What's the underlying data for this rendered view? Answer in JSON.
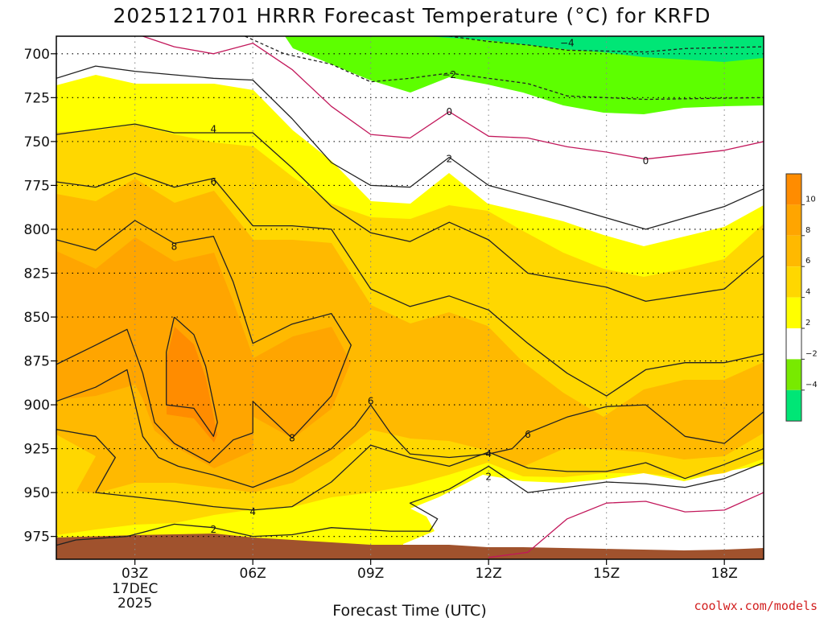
{
  "chart_data": {
    "type": "contour",
    "title": "2025121701 HRRR Forecast Temperature (°C) for KRFD",
    "xlabel": "Forecast Time (UTC)",
    "ylabel": "",
    "ylim": [
      988,
      690
    ],
    "xlim": [
      1,
      19
    ],
    "y_ticks": [
      "700",
      "725",
      "750",
      "775",
      "800",
      "825",
      "850",
      "875",
      "900",
      "925",
      "950",
      "975"
    ],
    "x_ticks": [
      {
        "hour": 3,
        "label": "03Z",
        "sub1": "17DEC",
        "sub2": "2025"
      },
      {
        "hour": 6,
        "label": "06Z",
        "sub1": "",
        "sub2": ""
      },
      {
        "hour": 9,
        "label": "09Z",
        "sub1": "",
        "sub2": ""
      },
      {
        "hour": 12,
        "label": "12Z",
        "sub1": "",
        "sub2": ""
      },
      {
        "hour": 15,
        "label": "15Z",
        "sub1": "",
        "sub2": ""
      },
      {
        "hour": 18,
        "label": "18Z",
        "sub1": "",
        "sub2": ""
      }
    ],
    "grid": true,
    "colorbar": {
      "placement": "right",
      "labels": [
        "10",
        "8",
        "6",
        "4",
        "2",
        "−2",
        "−4"
      ],
      "colors": [
        "#ff8c00",
        "#ffa500",
        "#ffb900",
        "#ffd700",
        "#ffff00",
        "#ffffff",
        "#78ea00",
        "#00e676"
      ]
    },
    "contours": [
      {
        "level": -4,
        "color": "#222222",
        "dashed": true,
        "points": [
          [
            11.0,
            690
          ],
          [
            12.0,
            693
          ],
          [
            13.0,
            695
          ],
          [
            14.0,
            698
          ],
          [
            16.0,
            699
          ],
          [
            17.0,
            697
          ],
          [
            19.0,
            696
          ]
        ]
      },
      {
        "level": -2,
        "color": "#222222",
        "dashed": true,
        "points": [
          [
            5.8,
            690
          ],
          [
            6.8,
            700
          ],
          [
            8.0,
            706
          ],
          [
            9.0,
            716
          ],
          [
            10.0,
            714
          ],
          [
            11.0,
            711
          ],
          [
            12.0,
            714
          ],
          [
            13.0,
            717
          ],
          [
            14.0,
            724
          ],
          [
            16.0,
            726
          ],
          [
            19.0,
            725
          ]
        ]
      },
      {
        "level": 0,
        "color": "#c2185b",
        "dashed": false,
        "points": [
          [
            3.2,
            690
          ],
          [
            4.0,
            696
          ],
          [
            5.0,
            700
          ],
          [
            6.0,
            694
          ],
          [
            7.0,
            709
          ],
          [
            8.0,
            730
          ],
          [
            9.0,
            746
          ],
          [
            10.0,
            748
          ],
          [
            11.0,
            733
          ],
          [
            12.0,
            747
          ],
          [
            13.0,
            748
          ],
          [
            14.0,
            753
          ],
          [
            15.0,
            756
          ],
          [
            16.0,
            760
          ],
          [
            18.0,
            755
          ],
          [
            19.0,
            750
          ]
        ]
      },
      {
        "level": 2,
        "color": "#222222",
        "dashed": false,
        "points": [
          [
            1.0,
            714
          ],
          [
            2.0,
            707
          ],
          [
            3.0,
            710
          ],
          [
            4.0,
            712
          ],
          [
            5.0,
            714
          ],
          [
            6.0,
            715
          ],
          [
            7.0,
            737
          ],
          [
            8.0,
            762
          ],
          [
            9.0,
            775
          ],
          [
            10.0,
            776
          ],
          [
            11.0,
            759
          ],
          [
            12.0,
            775
          ],
          [
            14.0,
            787
          ],
          [
            16.0,
            800
          ],
          [
            18.0,
            787
          ],
          [
            19.0,
            777
          ]
        ]
      },
      {
        "level": 4,
        "color": "#222222",
        "dashed": false,
        "points": [
          [
            1.0,
            746
          ],
          [
            2.0,
            743
          ],
          [
            3.0,
            740
          ],
          [
            4.0,
            745
          ],
          [
            5.0,
            745
          ],
          [
            6.0,
            745
          ],
          [
            7.0,
            765
          ],
          [
            8.0,
            787
          ],
          [
            9.0,
            802
          ],
          [
            10.0,
            807
          ],
          [
            11.0,
            796
          ],
          [
            12.0,
            806
          ],
          [
            13.0,
            825
          ],
          [
            15.0,
            833
          ],
          [
            16.0,
            841
          ],
          [
            18.0,
            834
          ],
          [
            19.0,
            815
          ]
        ]
      },
      {
        "level": 6,
        "color": "#222222",
        "dashed": false,
        "points": [
          [
            1.0,
            773
          ],
          [
            2.0,
            776
          ],
          [
            3.0,
            768
          ],
          [
            4.0,
            776
          ],
          [
            5.0,
            771
          ],
          [
            6.0,
            798
          ],
          [
            7.0,
            798
          ],
          [
            8.0,
            800
          ],
          [
            9.0,
            834
          ],
          [
            10.0,
            844
          ],
          [
            11.0,
            838
          ],
          [
            12.0,
            846
          ],
          [
            13.0,
            865
          ],
          [
            14.0,
            882
          ],
          [
            15.0,
            895
          ],
          [
            16.0,
            880
          ],
          [
            17.0,
            876
          ],
          [
            18.0,
            876
          ],
          [
            19.0,
            871
          ]
        ]
      },
      {
        "level": 8,
        "color": "#222222",
        "dashed": false,
        "points": [
          [
            1.0,
            806
          ],
          [
            2.0,
            812
          ],
          [
            3.0,
            795
          ],
          [
            4.0,
            808
          ],
          [
            5.0,
            804
          ],
          [
            5.5,
            830
          ],
          [
            6.0,
            865
          ],
          [
            7.0,
            854
          ],
          [
            8.0,
            848
          ],
          [
            8.5,
            866
          ],
          [
            8.0,
            895
          ],
          [
            7.0,
            919
          ],
          [
            6.0,
            898
          ],
          [
            6.0,
            916
          ]
        ]
      },
      {
        "level": 10,
        "color": "#222222",
        "dashed": false,
        "points": [
          [
            4.0,
            850
          ],
          [
            4.5,
            860
          ],
          [
            4.8,
            878
          ],
          [
            5.1,
            910
          ],
          [
            5.0,
            918
          ],
          [
            4.5,
            902
          ],
          [
            3.8,
            900
          ],
          [
            3.8,
            870
          ],
          [
            4.0,
            850
          ]
        ]
      },
      {
        "level": 8,
        "color": "#222222",
        "dashed": false,
        "points": [
          [
            1.0,
            877
          ],
          [
            2.0,
            866
          ],
          [
            2.8,
            857
          ],
          [
            3.2,
            882
          ],
          [
            3.5,
            910
          ],
          [
            4.0,
            922
          ],
          [
            4.9,
            933
          ],
          [
            5.5,
            920
          ],
          [
            6.0,
            916
          ]
        ]
      },
      {
        "level": 6,
        "color": "#222222",
        "dashed": false,
        "points": [
          [
            1.0,
            898
          ],
          [
            2.0,
            890
          ],
          [
            2.8,
            880
          ],
          [
            3.2,
            918
          ],
          [
            3.6,
            930
          ],
          [
            4.1,
            935
          ],
          [
            5.0,
            940
          ],
          [
            6.0,
            947
          ],
          [
            7.0,
            938
          ],
          [
            8.0,
            925
          ],
          [
            8.6,
            912
          ],
          [
            9.0,
            900
          ],
          [
            9.5,
            916
          ],
          [
            10.0,
            928
          ],
          [
            11.0,
            930
          ],
          [
            12.0,
            928
          ],
          [
            12.6,
            925
          ],
          [
            13.0,
            916
          ],
          [
            14.0,
            907
          ],
          [
            15.0,
            901
          ],
          [
            16.0,
            900
          ],
          [
            17.0,
            918
          ],
          [
            18.0,
            922
          ],
          [
            19.0,
            904
          ]
        ]
      },
      {
        "level": 4,
        "color": "#222222",
        "dashed": false,
        "points": [
          [
            1.0,
            914
          ],
          [
            2.0,
            918
          ],
          [
            2.5,
            930
          ],
          [
            2.0,
            950
          ],
          [
            4.0,
            955
          ],
          [
            5.0,
            958
          ],
          [
            6.0,
            960
          ],
          [
            7.0,
            958
          ],
          [
            8.0,
            944
          ],
          [
            9.0,
            923
          ],
          [
            10.0,
            930
          ],
          [
            11.0,
            935
          ],
          [
            12.0,
            927
          ],
          [
            13.0,
            936
          ],
          [
            14.0,
            938
          ],
          [
            15.0,
            938
          ],
          [
            16.0,
            933
          ],
          [
            17.0,
            942
          ],
          [
            18.0,
            934
          ],
          [
            19.0,
            925
          ]
        ]
      },
      {
        "level": 2,
        "color": "#222222",
        "dashed": false,
        "points": [
          [
            1.0,
            980
          ],
          [
            1.5,
            977
          ],
          [
            2.8,
            975
          ],
          [
            4.0,
            968
          ],
          [
            5.0,
            970
          ],
          [
            6.0,
            975
          ],
          [
            7.0,
            974
          ],
          [
            8.0,
            970
          ],
          [
            9.5,
            972
          ],
          [
            10.5,
            972
          ],
          [
            10.7,
            965
          ],
          [
            10.0,
            956
          ],
          [
            11.0,
            948
          ],
          [
            12.0,
            935
          ],
          [
            13.0,
            950
          ],
          [
            14.0,
            947
          ],
          [
            15.0,
            944
          ],
          [
            16.0,
            945
          ],
          [
            17.0,
            947
          ],
          [
            18.0,
            942
          ],
          [
            19.0,
            933
          ]
        ]
      },
      {
        "level": 0,
        "color": "#c2185b",
        "dashed": false,
        "points": [
          [
            12.0,
            987
          ],
          [
            13.0,
            984
          ],
          [
            14.0,
            965
          ],
          [
            15.0,
            956
          ],
          [
            16.0,
            955
          ],
          [
            17.0,
            961
          ],
          [
            18.0,
            960
          ],
          [
            19.0,
            950
          ]
        ]
      }
    ],
    "contour_labels": [
      {
        "x": 5.0,
        "y": 743,
        "text": "4"
      },
      {
        "x": 5.0,
        "y": 773,
        "text": "6"
      },
      {
        "x": 4.0,
        "y": 810,
        "text": "8"
      },
      {
        "x": 7.0,
        "y": 919,
        "text": "8"
      },
      {
        "x": 9.0,
        "y": 898,
        "text": "6"
      },
      {
        "x": 13.0,
        "y": 917,
        "text": "6"
      },
      {
        "x": 12.0,
        "y": 928,
        "text": "4"
      },
      {
        "x": 6.0,
        "y": 961,
        "text": "4"
      },
      {
        "x": 5.0,
        "y": 971,
        "text": "2"
      },
      {
        "x": 12.0,
        "y": 941,
        "text": "2"
      },
      {
        "x": 11.0,
        "y": 760,
        "text": "2"
      },
      {
        "x": 11.0,
        "y": 733,
        "text": "0"
      },
      {
        "x": 16.0,
        "y": 761,
        "text": "0"
      },
      {
        "x": 11.0,
        "y": 712,
        "text": "−2"
      },
      {
        "x": 14.0,
        "y": 694,
        "text": "−4"
      }
    ]
  },
  "credit": "coolwx.com/models"
}
